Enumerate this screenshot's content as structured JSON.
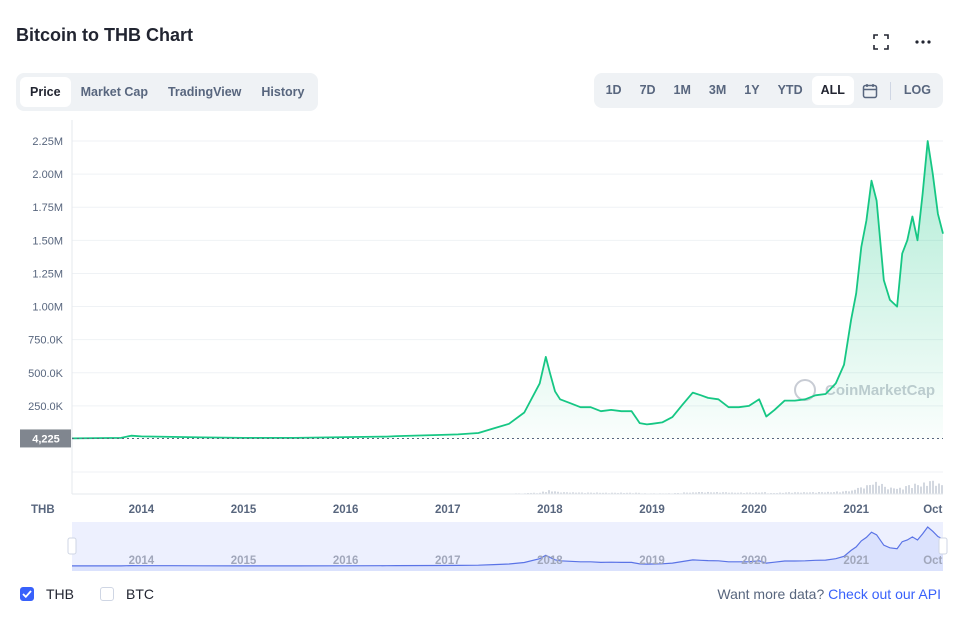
{
  "header": {
    "title": "Bitcoin to THB Chart"
  },
  "icons": {
    "fullscreen": "fullscreen-icon",
    "more": "more-dots-icon",
    "calendar": "calendar-icon"
  },
  "tabs": [
    {
      "label": "Price",
      "active": true
    },
    {
      "label": "Market Cap",
      "active": false
    },
    {
      "label": "TradingView",
      "active": false
    },
    {
      "label": "History",
      "active": false
    }
  ],
  "ranges": [
    {
      "label": "1D",
      "active": false
    },
    {
      "label": "7D",
      "active": false
    },
    {
      "label": "1M",
      "active": false
    },
    {
      "label": "3M",
      "active": false
    },
    {
      "label": "1Y",
      "active": false
    },
    {
      "label": "YTD",
      "active": false
    },
    {
      "label": "ALL",
      "active": true
    }
  ],
  "log_label": "LOG",
  "colors": {
    "line": "#16c784",
    "accent": "#3861fb",
    "grid": "#eff2f5",
    "text": "#58667e"
  },
  "legend": {
    "thb": {
      "label": "THB",
      "checked": true
    },
    "btc": {
      "label": "BTC",
      "checked": false
    }
  },
  "footer": {
    "prefix": "Want more data?",
    "link": "Check out our API"
  },
  "chart_data": {
    "type": "area",
    "currency_label": "THB",
    "watermark": "CoinMarketCap",
    "current_value_label": "4,225",
    "current_value": 4225,
    "y_ticks": [
      250000,
      500000,
      750000,
      1000000,
      1250000,
      1500000,
      1750000,
      2000000,
      2250000
    ],
    "y_tick_labels": [
      "250.0K",
      "500.0K",
      "750.0K",
      "1.00M",
      "1.25M",
      "1.50M",
      "1.75M",
      "2.00M",
      "2.25M"
    ],
    "ylim": [
      0,
      2250000
    ],
    "xlim": [
      2013.32,
      2021.85
    ],
    "x_ticks": [
      2014,
      2015,
      2016,
      2017,
      2018,
      2019,
      2020,
      2021,
      2021.75
    ],
    "x_tick_labels": [
      "2014",
      "2015",
      "2016",
      "2017",
      "2018",
      "2019",
      "2020",
      "2021",
      "Oct"
    ],
    "grid": true,
    "series": [
      {
        "x": [
          2013.32,
          2013.8,
          2013.9,
          2014.0,
          2014.3,
          2014.6,
          2015.0,
          2015.5,
          2016.0,
          2016.4,
          2016.5,
          2016.9,
          2017.1,
          2017.3,
          2017.45,
          2017.6,
          2017.75,
          2017.9,
          2017.96,
          2018.0,
          2018.05,
          2018.1,
          2018.2,
          2018.3,
          2018.4,
          2018.5,
          2018.6,
          2018.7,
          2018.8,
          2018.88,
          2018.95,
          2019.0,
          2019.1,
          2019.2,
          2019.3,
          2019.4,
          2019.48,
          2019.55,
          2019.65,
          2019.75,
          2019.85,
          2019.95,
          2020.05,
          2020.12,
          2020.2,
          2020.3,
          2020.4,
          2020.5,
          2020.6,
          2020.7,
          2020.8,
          2020.88,
          2020.95,
          2021.0,
          2021.05,
          2021.1,
          2021.15,
          2021.2,
          2021.27,
          2021.33,
          2021.4,
          2021.45,
          2021.5,
          2021.55,
          2021.6,
          2021.65,
          2021.7,
          2021.75,
          2021.8,
          2021.85
        ],
        "values": [
          4225,
          8000,
          25000,
          20000,
          16000,
          12000,
          8000,
          8500,
          14000,
          18000,
          22000,
          30000,
          35000,
          45000,
          80000,
          115000,
          200000,
          420000,
          620000,
          500000,
          360000,
          300000,
          270000,
          240000,
          240000,
          210000,
          220000,
          210000,
          210000,
          120000,
          110000,
          115000,
          125000,
          165000,
          260000,
          350000,
          330000,
          310000,
          300000,
          240000,
          240000,
          250000,
          300000,
          170000,
          220000,
          290000,
          290000,
          300000,
          330000,
          340000,
          420000,
          560000,
          900000,
          1100000,
          1450000,
          1650000,
          1950000,
          1800000,
          1200000,
          1050000,
          1000000,
          1400000,
          1500000,
          1680000,
          1500000,
          1850000,
          2250000,
          2000000,
          1700000,
          1550000
        ]
      }
    ]
  }
}
